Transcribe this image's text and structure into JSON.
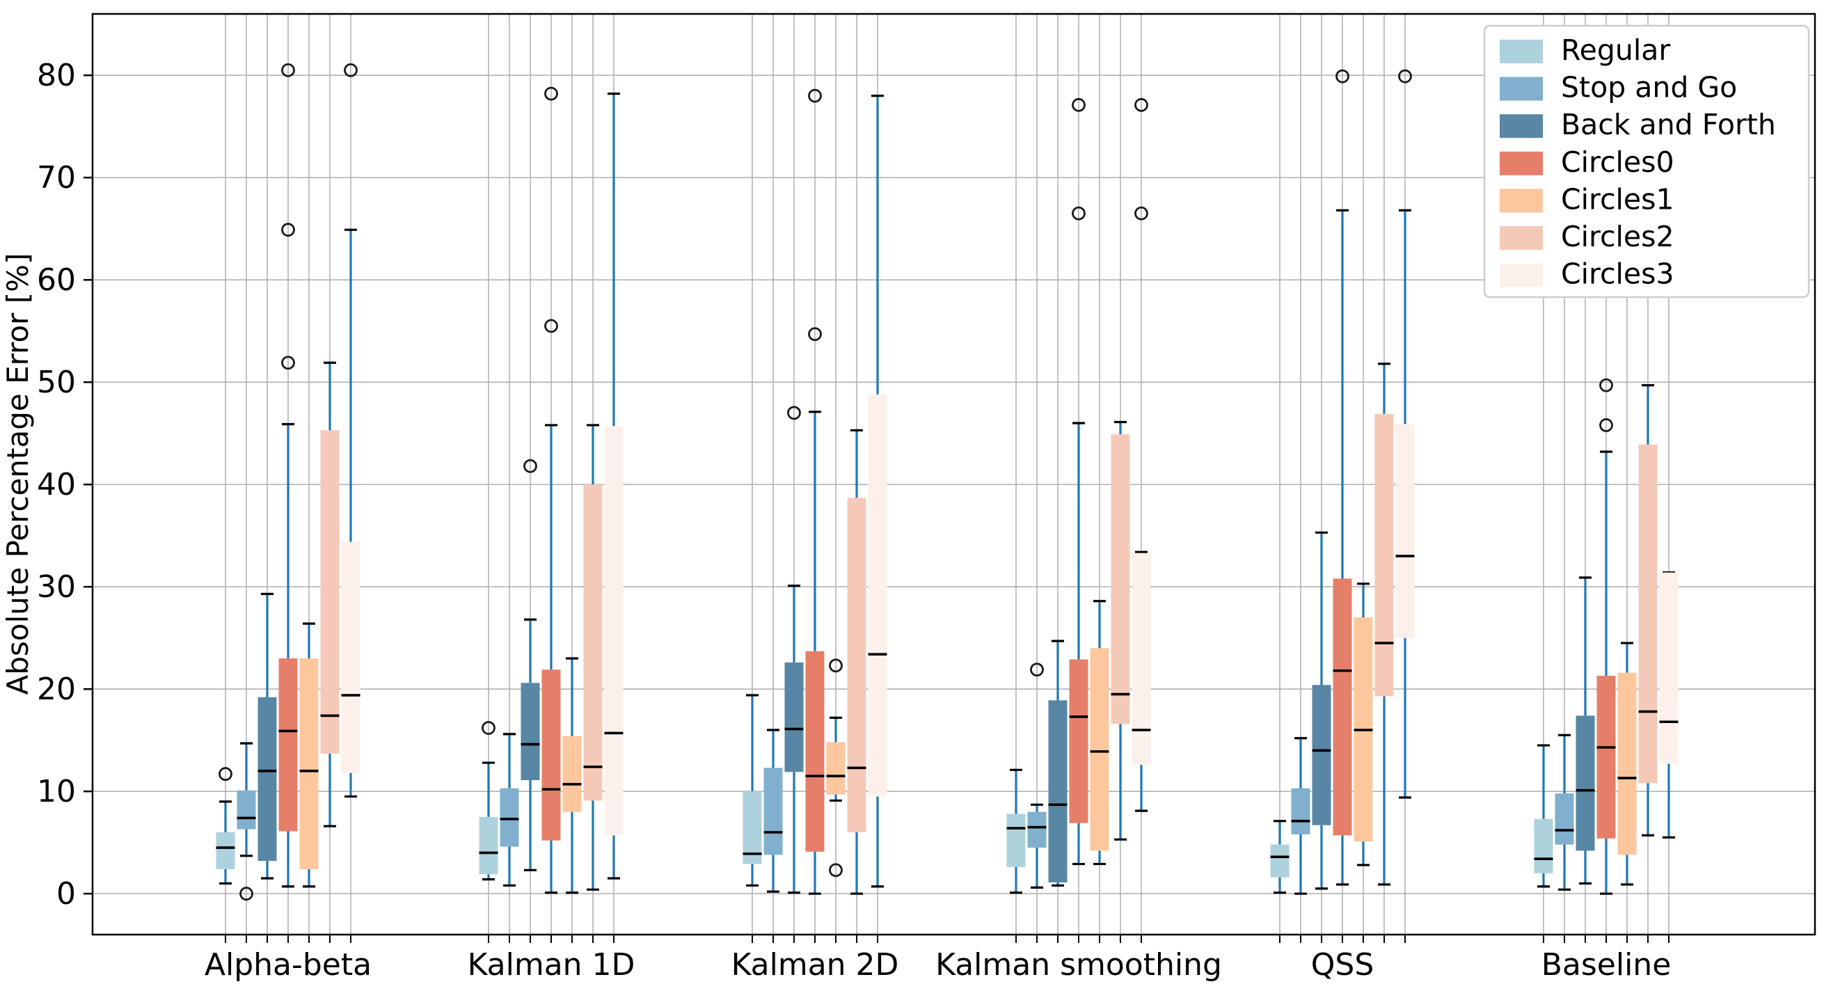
{
  "chart_data": {
    "type": "boxplot",
    "title": "",
    "xlabel": "",
    "ylabel": "Absolute Percentage Error [%]",
    "ylim": [
      -4,
      86
    ],
    "yticks": [
      0,
      10,
      20,
      30,
      40,
      50,
      60,
      70,
      80
    ],
    "grid": true,
    "legend_position": "upper right",
    "whisker_color": "#1f77b4",
    "median_color": "#000000",
    "outlier_marker": "open-circle",
    "groups": [
      "Alpha-beta",
      "Kalman 1D",
      "Kalman 2D",
      "Kalman smoothing",
      "QSS",
      "Baseline"
    ],
    "series": [
      {
        "name": "Regular",
        "color": "#aed1de",
        "boxes": [
          {
            "whislo": 1.0,
            "q1": 2.4,
            "med": 4.5,
            "q3": 6.0,
            "whishi": 9.0,
            "fliers": [
              11.7
            ]
          },
          {
            "whislo": 1.4,
            "q1": 1.9,
            "med": 4.0,
            "q3": 7.5,
            "whishi": 12.8,
            "fliers": [
              16.2
            ]
          },
          {
            "whislo": 0.8,
            "q1": 2.9,
            "med": 3.9,
            "q3": 10.0,
            "whishi": 19.4,
            "fliers": []
          },
          {
            "whislo": 0.1,
            "q1": 2.6,
            "med": 6.4,
            "q3": 7.8,
            "whishi": 12.1,
            "fliers": []
          },
          {
            "whislo": 0.1,
            "q1": 1.6,
            "med": 3.6,
            "q3": 4.8,
            "whishi": 7.1,
            "fliers": []
          },
          {
            "whislo": 0.7,
            "q1": 2.0,
            "med": 3.4,
            "q3": 7.3,
            "whishi": 14.5,
            "fliers": []
          }
        ]
      },
      {
        "name": "Stop and Go",
        "color": "#80b0cd",
        "boxes": [
          {
            "whislo": 3.7,
            "q1": 6.3,
            "med": 7.4,
            "q3": 10.1,
            "whishi": 14.7,
            "fliers": [
              0.0
            ]
          },
          {
            "whislo": 0.8,
            "q1": 4.6,
            "med": 7.3,
            "q3": 10.3,
            "whishi": 15.6,
            "fliers": []
          },
          {
            "whislo": 0.2,
            "q1": 3.8,
            "med": 6.0,
            "q3": 12.3,
            "whishi": 16.0,
            "fliers": []
          },
          {
            "whislo": 0.6,
            "q1": 4.5,
            "med": 6.5,
            "q3": 8.0,
            "whishi": 8.7,
            "fliers": [
              21.9
            ]
          },
          {
            "whislo": 0.0,
            "q1": 5.8,
            "med": 7.1,
            "q3": 10.3,
            "whishi": 15.2,
            "fliers": []
          },
          {
            "whislo": 0.4,
            "q1": 4.8,
            "med": 6.2,
            "q3": 9.8,
            "whishi": 15.5,
            "fliers": []
          }
        ]
      },
      {
        "name": "Back and Forth",
        "color": "#5886a5",
        "boxes": [
          {
            "whislo": 1.5,
            "q1": 3.2,
            "med": 12.0,
            "q3": 19.2,
            "whishi": 29.3,
            "fliers": []
          },
          {
            "whislo": 2.3,
            "q1": 11.1,
            "med": 14.6,
            "q3": 20.6,
            "whishi": 26.8,
            "fliers": [
              41.8
            ]
          },
          {
            "whislo": 0.1,
            "q1": 11.9,
            "med": 16.1,
            "q3": 22.6,
            "whishi": 30.1,
            "fliers": [
              47.0
            ]
          },
          {
            "whislo": 0.8,
            "q1": 1.1,
            "med": 8.7,
            "q3": 18.9,
            "whishi": 24.7,
            "fliers": []
          },
          {
            "whislo": 0.5,
            "q1": 6.7,
            "med": 14.0,
            "q3": 20.4,
            "whishi": 35.3,
            "fliers": []
          },
          {
            "whislo": 1.0,
            "q1": 4.2,
            "med": 10.1,
            "q3": 17.4,
            "whishi": 30.9,
            "fliers": []
          }
        ]
      },
      {
        "name": "Circles0",
        "color": "#e67f6a",
        "boxes": [
          {
            "whislo": 0.7,
            "q1": 6.1,
            "med": 15.9,
            "q3": 23.0,
            "whishi": 45.9,
            "fliers": [
              51.9,
              64.9,
              80.5
            ]
          },
          {
            "whislo": 0.1,
            "q1": 5.2,
            "med": 10.2,
            "q3": 21.9,
            "whishi": 45.8,
            "fliers": [
              55.5,
              78.2
            ]
          },
          {
            "whislo": 0.0,
            "q1": 4.1,
            "med": 11.5,
            "q3": 23.7,
            "whishi": 47.1,
            "fliers": [
              54.7,
              78.0
            ]
          },
          {
            "whislo": 2.9,
            "q1": 6.9,
            "med": 17.3,
            "q3": 22.9,
            "whishi": 46.0,
            "fliers": [
              66.5,
              77.1
            ]
          },
          {
            "whislo": 0.9,
            "q1": 5.7,
            "med": 21.8,
            "q3": 30.8,
            "whishi": 66.8,
            "fliers": [
              79.9
            ]
          },
          {
            "whislo": 0.0,
            "q1": 5.4,
            "med": 14.3,
            "q3": 21.3,
            "whishi": 43.2,
            "fliers": [
              45.8,
              49.7
            ]
          }
        ]
      },
      {
        "name": "Circles1",
        "color": "#fcc79d",
        "boxes": [
          {
            "whislo": 0.7,
            "q1": 2.4,
            "med": 12.0,
            "q3": 23.0,
            "whishi": 26.4,
            "fliers": []
          },
          {
            "whislo": 0.1,
            "q1": 8.0,
            "med": 10.7,
            "q3": 15.4,
            "whishi": 23.0,
            "fliers": []
          },
          {
            "whislo": 9.1,
            "q1": 9.7,
            "med": 11.5,
            "q3": 14.8,
            "whishi": 17.2,
            "fliers": [
              2.3,
              22.3
            ]
          },
          {
            "whislo": 2.9,
            "q1": 4.2,
            "med": 13.9,
            "q3": 24.0,
            "whishi": 28.6,
            "fliers": []
          },
          {
            "whislo": 2.8,
            "q1": 5.1,
            "med": 16.0,
            "q3": 27.0,
            "whishi": 30.3,
            "fliers": []
          },
          {
            "whislo": 0.9,
            "q1": 3.8,
            "med": 11.3,
            "q3": 21.6,
            "whishi": 24.5,
            "fliers": []
          }
        ]
      },
      {
        "name": "Circles2",
        "color": "#f5c9b8",
        "boxes": [
          {
            "whislo": 6.6,
            "q1": 13.7,
            "med": 17.4,
            "q3": 45.3,
            "whishi": 51.9,
            "fliers": []
          },
          {
            "whislo": 0.4,
            "q1": 9.1,
            "med": 12.4,
            "q3": 40.0,
            "whishi": 45.8,
            "fliers": []
          },
          {
            "whislo": 0.0,
            "q1": 6.0,
            "med": 12.3,
            "q3": 38.7,
            "whishi": 45.3,
            "fliers": []
          },
          {
            "whislo": 5.3,
            "q1": 16.6,
            "med": 19.5,
            "q3": 44.9,
            "whishi": 46.1,
            "fliers": []
          },
          {
            "whislo": 0.9,
            "q1": 19.3,
            "med": 24.5,
            "q3": 46.9,
            "whishi": 51.8,
            "fliers": []
          },
          {
            "whislo": 5.7,
            "q1": 10.8,
            "med": 17.8,
            "q3": 43.9,
            "whishi": 49.7,
            "fliers": []
          }
        ]
      },
      {
        "name": "Circles3",
        "color": "#fcf0ea",
        "boxes": [
          {
            "whislo": 9.5,
            "q1": 11.8,
            "med": 19.4,
            "q3": 34.4,
            "whishi": 64.9,
            "fliers": [
              80.5
            ]
          },
          {
            "whislo": 1.5,
            "q1": 5.7,
            "med": 15.7,
            "q3": 45.7,
            "whishi": 78.2,
            "fliers": []
          },
          {
            "whislo": 0.7,
            "q1": 9.5,
            "med": 23.4,
            "q3": 48.8,
            "whishi": 78.0,
            "fliers": []
          },
          {
            "whislo": 8.1,
            "q1": 12.6,
            "med": 16.0,
            "q3": 33.3,
            "whishi": 33.4,
            "fliers": [
              66.5,
              77.1
            ]
          },
          {
            "whislo": 9.4,
            "q1": 25.0,
            "med": 33.0,
            "q3": 45.9,
            "whishi": 66.8,
            "fliers": [
              79.9
            ]
          },
          {
            "whislo": 5.5,
            "q1": 12.7,
            "med": 16.8,
            "q3": 31.4,
            "whishi": 31.4,
            "fliers": []
          }
        ]
      }
    ]
  }
}
